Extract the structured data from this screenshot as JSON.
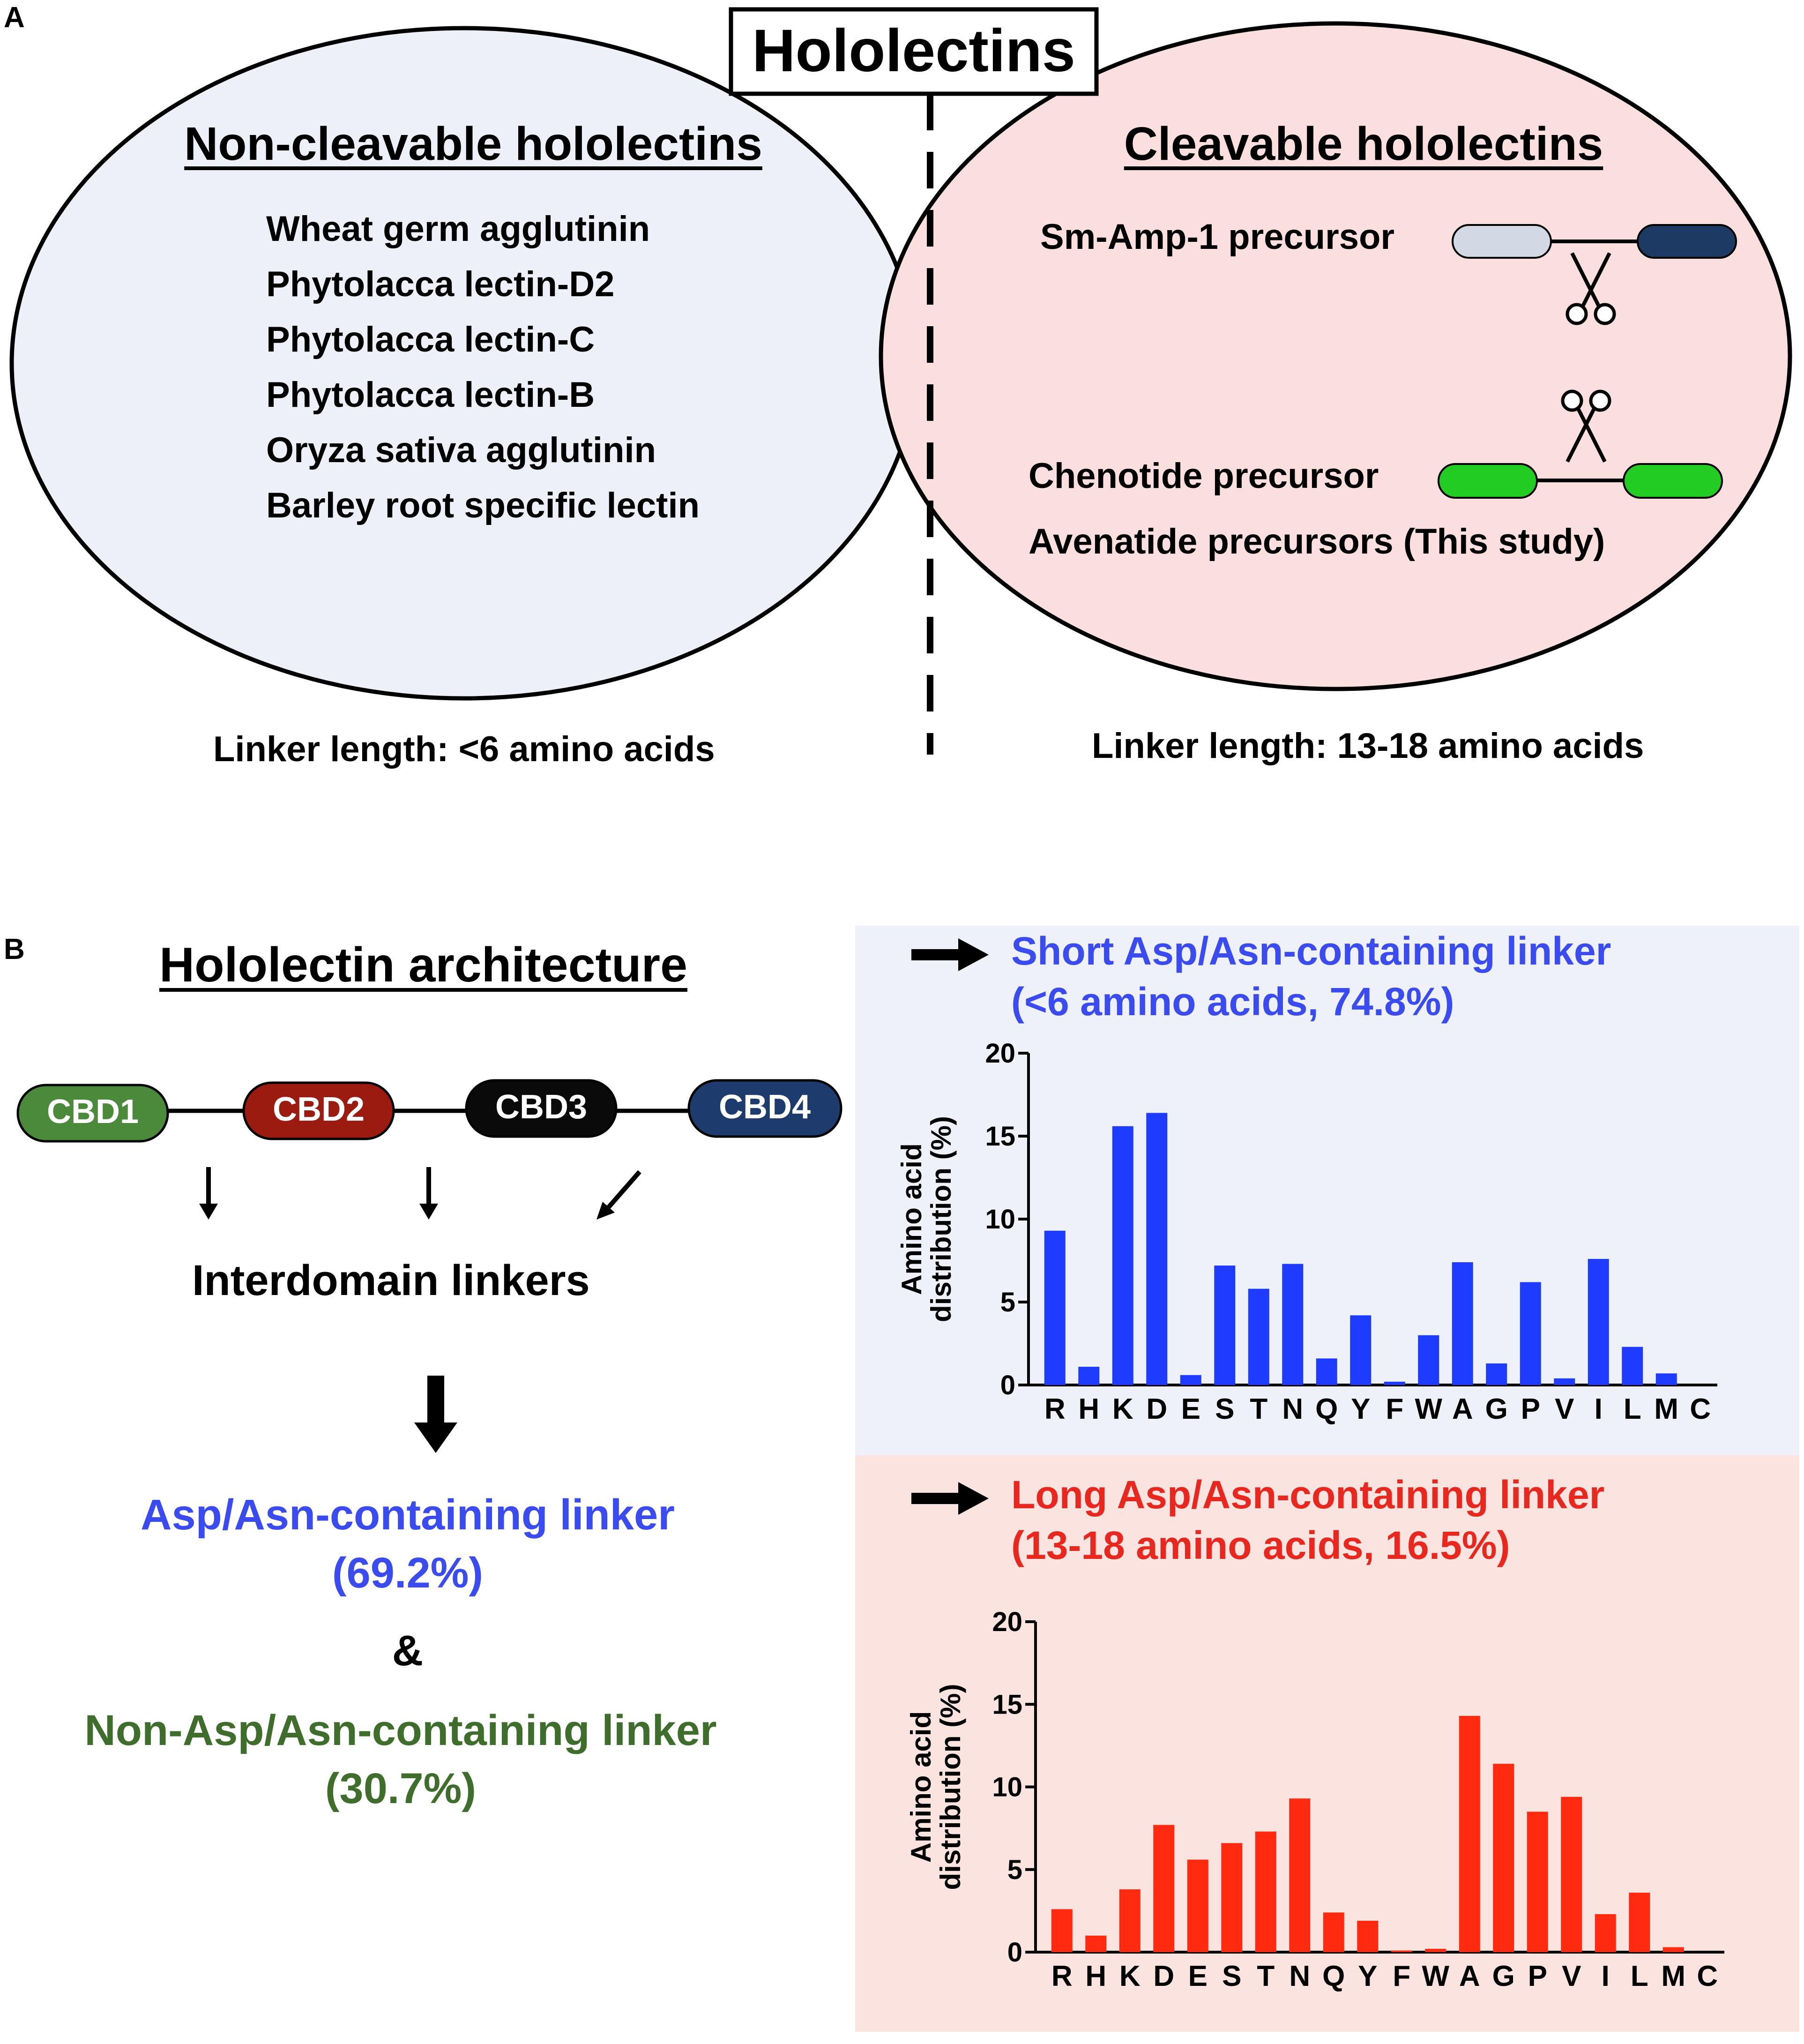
{
  "panel_a": {
    "label": "A",
    "title": "Hololectins",
    "left": {
      "heading": "Non-cleavable hololectins",
      "items": [
        "Wheat germ agglutinin",
        "Phytolacca lectin-D2",
        "Phytolacca lectin-C",
        "Phytolacca lectin-B",
        "Oryza sativa agglutinin",
        "Barley root specific lectin"
      ],
      "linker_note": "Linker length: <6 amino acids",
      "fill_color": "#eef0f9"
    },
    "right": {
      "heading": "Cleavable hololectins",
      "items": [
        "Sm-Amp-1 precursor",
        "Chenotide precursor",
        "Avenatide precursors (This study)"
      ],
      "linker_note": "Linker length: 13-18 amino acids",
      "fill_color": "#fbdede",
      "smamp_colors": [
        "#d3d9e4",
        "#1d3a64"
      ],
      "chenotide_color": "#22cc22"
    }
  },
  "panel_b": {
    "label": "B",
    "heading": "Hololectin architecture",
    "domains": [
      {
        "label": "CBD1",
        "color": "#4a8a3a"
      },
      {
        "label": "CBD2",
        "color": "#9b1b10"
      },
      {
        "label": "CBD3",
        "color": "#0a0a0a"
      },
      {
        "label": "CBD4",
        "color": "#1e3b6e"
      }
    ],
    "interdomain_label": "Interdomain linkers",
    "asp_linker_line1": "Asp/Asn-containing linker",
    "asp_linker_line2": "(69.2%)",
    "ampersand": "&",
    "non_asp_line1": "Non-Asp/Asn-containing linker",
    "non_asp_line2": "(30.7%)",
    "asp_color": "#3a4bf0",
    "non_asp_color": "#3f6e2c"
  },
  "chart_data": [
    {
      "type": "bar",
      "title_line1": "Short Asp/Asn-containing linker",
      "title_line2": "(<6 amino acids, 74.8%)",
      "title_color": "#3a4bf0",
      "bar_color": "#1e3cff",
      "bg_color": "#eef1fa",
      "ylabel_line1": "Amino acid",
      "ylabel_line2": "distribution (%)",
      "ylim": [
        0,
        20
      ],
      "yticks": [
        "0",
        "5",
        "10",
        "15",
        "20"
      ],
      "categories": [
        "R",
        "H",
        "K",
        "D",
        "E",
        "S",
        "T",
        "N",
        "Q",
        "Y",
        "F",
        "W",
        "A",
        "G",
        "P",
        "V",
        "I",
        "L",
        "M",
        "C"
      ],
      "values": [
        9.3,
        1.1,
        15.6,
        16.4,
        0.6,
        7.2,
        5.8,
        7.3,
        1.6,
        4.2,
        0.2,
        3.0,
        7.4,
        1.3,
        6.2,
        0.4,
        7.6,
        2.3,
        0.7,
        0
      ]
    },
    {
      "type": "bar",
      "title_line1": "Long Asp/Asn-containing linker",
      "title_line2": "(13-18 amino acids, 16.5%)",
      "title_color": "#e8281e",
      "bar_color": "#ff2a10",
      "bg_color": "#fbe3df",
      "ylabel_line1": "Amino acid",
      "ylabel_line2": "distribution (%)",
      "ylim": [
        0,
        20
      ],
      "yticks": [
        "0",
        "5",
        "10",
        "15",
        "20"
      ],
      "categories": [
        "R",
        "H",
        "K",
        "D",
        "E",
        "S",
        "T",
        "N",
        "Q",
        "Y",
        "F",
        "W",
        "A",
        "G",
        "P",
        "V",
        "I",
        "L",
        "M",
        "C"
      ],
      "values": [
        2.6,
        1.0,
        3.8,
        7.7,
        5.6,
        6.6,
        7.3,
        9.3,
        2.4,
        1.9,
        0.1,
        0.2,
        14.3,
        11.4,
        8.5,
        9.4,
        2.3,
        3.6,
        0.3,
        0
      ]
    }
  ]
}
